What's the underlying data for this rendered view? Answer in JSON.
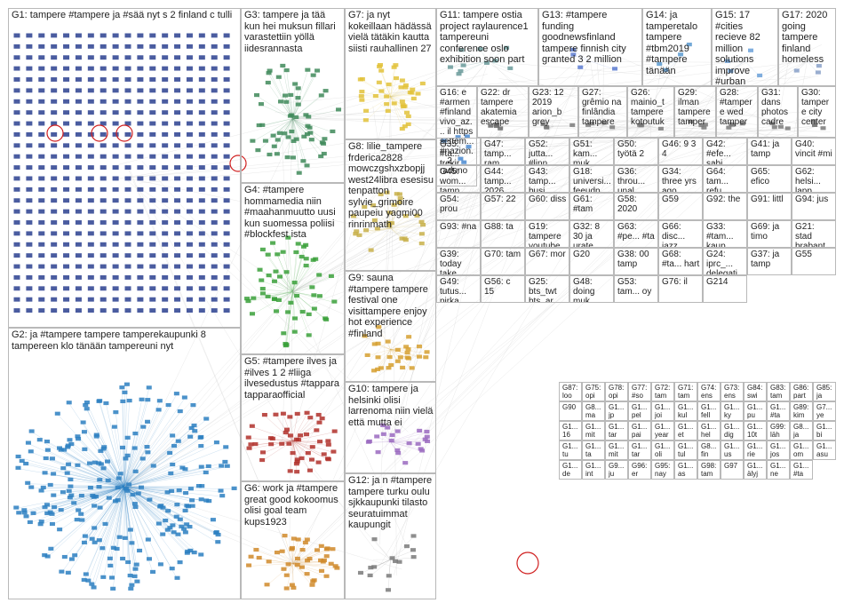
{
  "groups": [
    {
      "id": "G1",
      "label": "G1: tampere #tampere ja #sää nyt s 2 finland c tulli",
      "color": "#2a3f8f",
      "nodes": 480,
      "layout": "grid"
    },
    {
      "id": "G2",
      "label": "G2: ja #tampere tampere tamperekaupunki 8 tampereen klo tänään tampereuni nyt",
      "color": "#2b7fc1",
      "nodes": 320,
      "layout": "cluster"
    },
    {
      "id": "G3",
      "label": "G3: tampere ja tää kun hei muksun fillari varastettiin yöllä iidesrannasta",
      "color": "#3f8a5a",
      "nodes": 60,
      "layout": "cluster"
    },
    {
      "id": "G4",
      "label": "G4: #tampere hommamedia niin #maahanmuutto uusi kun suomessa poliisi #blockfest ista",
      "color": "#3aa03a",
      "nodes": 55,
      "layout": "cluster"
    },
    {
      "id": "G5",
      "label": "G5: #tampere ilves ja #ilves 1 2 #liiga ilvesedustus #tappara tapparaofficial",
      "color": "#b0302a",
      "nodes": 50,
      "layout": "cluster"
    },
    {
      "id": "G6",
      "label": "G6: work ja #tampere great good kokoomus olisi goal team kups1923",
      "color": "#d08a2a",
      "nodes": 45,
      "layout": "cluster"
    },
    {
      "id": "G7",
      "label": "G7: ja nyt kokeillaan hädässä vielä tätäkin kautta siisti rauhallinen 27",
      "color": "#e2c23a",
      "nodes": 40,
      "layout": "cluster"
    },
    {
      "id": "G8",
      "label": "G8: lilie_tampere frderica2828 mowczgshxzbopjj west24libra esesisu tenpatton sylvie_grimoire paupeiu yagmi00 rinrinmath",
      "color": "#c8b04a",
      "nodes": 30,
      "layout": "cluster"
    },
    {
      "id": "G9",
      "label": "G9: sauna #tampere tampere festival one visittampere enjoy hot experience #finland",
      "color": "#d6a030",
      "nodes": 28,
      "layout": "cluster"
    },
    {
      "id": "G10",
      "label": "G10: tampere ja helsinki olisi larrenoma niin vielä että mutta ei",
      "color": "#9a6ac0",
      "nodes": 22,
      "layout": "cluster"
    },
    {
      "id": "G11",
      "label": "G11: tampere ostia project raylaurence1 tampereuni conference oslo exhibition soon part",
      "color": "#6a9a9a",
      "nodes": 10,
      "layout": "cluster"
    },
    {
      "id": "G12",
      "label": "G12: ja n #tampere tampere turku oulu sjkkaupunki tilasto seuratuimmat kaupungit",
      "color": "#7a7a7a",
      "nodes": 14,
      "layout": "cluster"
    },
    {
      "id": "G13",
      "label": "G13: #tampere funding goodnewsfinland tampere finnish city granted 3 2 million",
      "color": "#5a7ad0",
      "nodes": 4,
      "layout": "cluster"
    },
    {
      "id": "G14",
      "label": "G14: ja tamperetalo tampere #tbm2019 #tampere tänään",
      "color": "#5a9ad0",
      "nodes": 4,
      "layout": "cluster"
    },
    {
      "id": "G15",
      "label": "G15: 17 #cities recieve 82 million solutions improve #urban",
      "color": "#6aa0d8",
      "nodes": 4,
      "layout": "cluster"
    },
    {
      "id": "G17",
      "label": "G17: 2020 going tampere finland homeless",
      "color": "#88a0c8",
      "nodes": 3,
      "layout": "cluster"
    },
    {
      "id": "G16",
      "label": "G16: e #armen #finland vivo_az... il https settem... #nazion... 2 raduno",
      "color": "#4a8ad0",
      "nodes": 6,
      "layout": "cluster"
    },
    {
      "id": "G22",
      "label": "G22: dr tampere akatemia escape",
      "color": "#6a6a6a",
      "nodes": 4,
      "layout": "cluster"
    },
    {
      "id": "G23",
      "label": "G23: 12 2019 arion_b grey",
      "color": "#7a7a7a",
      "nodes": 4,
      "layout": "cluster"
    },
    {
      "id": "G27",
      "label": "G27: grêmio na finlândia tampere",
      "color": "#7a7a7a",
      "nodes": 4,
      "layout": "cluster"
    },
    {
      "id": "G26",
      "label": "G26: mainio_t tampere kotoutuk",
      "color": "#7a7a7a",
      "nodes": 4,
      "layout": "cluster"
    },
    {
      "id": "G29",
      "label": "G29: ilman tampere tamper",
      "color": "#7a7a7a",
      "nodes": 4,
      "layout": "cluster"
    },
    {
      "id": "G28",
      "label": "G28: #tampere wed tamper",
      "color": "#7a7a7a",
      "nodes": 4,
      "layout": "cluster"
    },
    {
      "id": "G31",
      "label": "G31: dans photos cadre",
      "color": "#7a7a7a",
      "nodes": 4,
      "layout": "cluster"
    },
    {
      "id": "G30",
      "label": "G30: tampere city center",
      "color": "#7a7a7a",
      "nodes": 4,
      "layout": "cluster"
    }
  ],
  "small_labels": [
    "G35: #ta... trekir... #kir",
    "G47: tamp... ram",
    "G52: jutta... #linn",
    "G51: kam... muk",
    "G50: työtä 2",
    "G46: 9 3 4",
    "G42: #efe... sabi",
    "G41: ja tamp",
    "G40: vincit #mi",
    "G45: wom... tamp",
    "G44: tamp... 2026",
    "G43: tamp... busi",
    "G18: universi... feeudp tampere ingenie... comerci... ocupa segund",
    "G36: throu... unal... eind",
    "G34: three yrs ago",
    "G64: tam... refu",
    "G65: efico",
    "G62: helsi... lapp",
    "G54: prou",
    "G57: 22",
    "G60: diss",
    "G61: #tam",
    "G58: 2020",
    "G59",
    "G92: the",
    "G91: littl",
    "G94: jus",
    "G93: #na",
    "G88: ta",
    "G19: tampere youtube live rammst",
    "G32: 8 30 ja urate",
    "G63: #pe... #ta",
    "G66: disc... jazz",
    "G33: #tam... kaup",
    "G69: ja timo",
    "G21: stad brabant #eindh... zwitser",
    "G39: today take",
    "G70: tam",
    "G67: mor",
    "G20",
    "G38: 00 tamp",
    "G68: #ta... hart",
    "G24: iprc_... delegati... finland educati",
    "G37: ja tamp",
    "G55",
    "G49: tutus... pirka",
    "G56: c 15",
    "G25: bts_twt bts_ar... armybri... armybri",
    "G48: doing muk",
    "G53: tam... oy",
    "G76: il",
    "G214"
  ],
  "dense_cell_labels": [
    "G87: loo",
    "G75: opi",
    "G78: opi",
    "G77: #so",
    "G72: tam",
    "G71: tam",
    "G74: ens",
    "G73: ens",
    "G84: swi",
    "G83: tam",
    "G86: part",
    "G85: ja",
    "G90",
    "G8... ma",
    "G1... jp",
    "G1... pel",
    "G1... joi",
    "G1... kul",
    "G1... fell",
    "G1... ky",
    "G1... pu",
    "G1... #ta",
    "G89: kim",
    "G7... ye",
    "G1... 16",
    "G1... mit",
    "G1... tar",
    "G1... pai",
    "G1... year",
    "G1... et",
    "G1... hel",
    "G1... dig",
    "G1... 10t",
    "G99: läh",
    "G8... ja",
    "G1... bi",
    "G1... tu",
    "G1... ta",
    "G1... mit",
    "G1... tar",
    "G1... oli",
    "G1... tul",
    "G8... fin",
    "G1... us",
    "G1... rie",
    "G1... jos",
    "G1... om",
    "G1... asu",
    "G1... de",
    "G1... int",
    "G9... ju",
    "G96: er",
    "G95: nay",
    "G1... as",
    "G98: tam",
    "G97",
    "G1... älyj",
    "G1... ne",
    "G1... #ta"
  ],
  "colors": {
    "edge": "#bfbfbf",
    "box_border": "#b9b9b9",
    "text": "#222222",
    "highlight_ring": "#d02020"
  }
}
